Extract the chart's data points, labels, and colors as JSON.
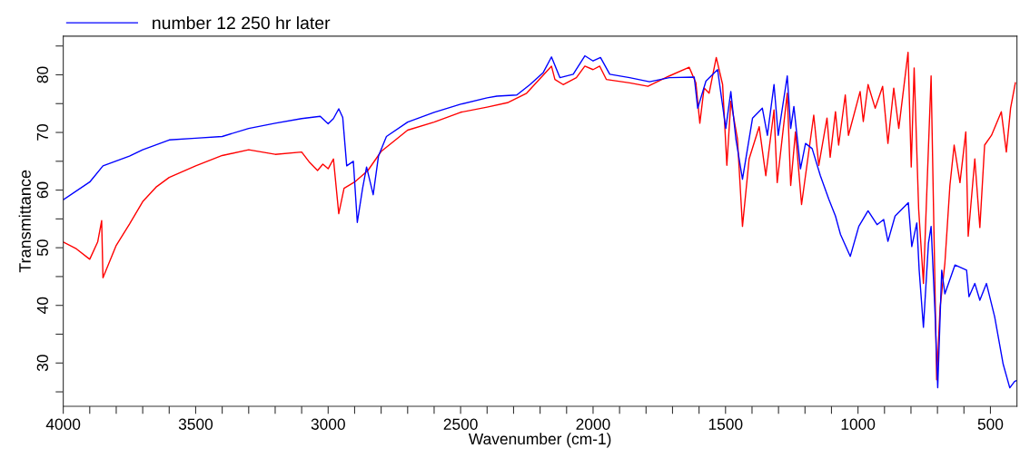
{
  "chart_data": {
    "type": "line",
    "xlabel": "Wavenumber (cm-1)",
    "ylabel": "Transmittance",
    "xlim": [
      4000,
      400
    ],
    "ylim": [
      22.5,
      86.7
    ],
    "xticks": [
      {
        "value": 4000,
        "label": "4000"
      },
      {
        "value": 3900,
        "label": null
      },
      {
        "value": 3800,
        "label": null
      },
      {
        "value": 3700,
        "label": null
      },
      {
        "value": 3600,
        "label": null
      },
      {
        "value": 3500,
        "label": "3500"
      },
      {
        "value": 3400,
        "label": null
      },
      {
        "value": 3300,
        "label": null
      },
      {
        "value": 3200,
        "label": null
      },
      {
        "value": 3100,
        "label": null
      },
      {
        "value": 3000,
        "label": "3000"
      },
      {
        "value": 2900,
        "label": null
      },
      {
        "value": 2800,
        "label": null
      },
      {
        "value": 2700,
        "label": null
      },
      {
        "value": 2600,
        "label": null
      },
      {
        "value": 2500,
        "label": "2500"
      },
      {
        "value": 2400,
        "label": null
      },
      {
        "value": 2300,
        "label": null
      },
      {
        "value": 2200,
        "label": null
      },
      {
        "value": 2100,
        "label": null
      },
      {
        "value": 2000,
        "label": "2000"
      },
      {
        "value": 1900,
        "label": null
      },
      {
        "value": 1800,
        "label": null
      },
      {
        "value": 1700,
        "label": null
      },
      {
        "value": 1600,
        "label": null
      },
      {
        "value": 1500,
        "label": "1500"
      },
      {
        "value": 1400,
        "label": null
      },
      {
        "value": 1300,
        "label": null
      },
      {
        "value": 1200,
        "label": null
      },
      {
        "value": 1100,
        "label": null
      },
      {
        "value": 1000,
        "label": "1000"
      },
      {
        "value": 900,
        "label": null
      },
      {
        "value": 800,
        "label": null
      },
      {
        "value": 700,
        "label": null
      },
      {
        "value": 600,
        "label": null
      },
      {
        "value": 500,
        "label": "500"
      }
    ],
    "yticks": [
      {
        "value": 25,
        "label": null
      },
      30,
      {
        "value": 35,
        "label": null
      },
      40,
      {
        "value": 45,
        "label": null
      },
      50,
      {
        "value": 55,
        "label": null
      },
      60,
      {
        "value": 65,
        "label": null
      },
      70,
      {
        "value": 75,
        "label": null
      },
      80,
      {
        "value": 85,
        "label": null
      }
    ],
    "grid": false,
    "legend": "top left",
    "marker": "none",
    "line_style": "solid",
    "series": [
      {
        "color": "#ff0000",
        "x": [
          4000,
          3950,
          3900,
          3870,
          3855,
          3850,
          3800,
          3750,
          3700,
          3650,
          3600,
          3500,
          3400,
          3300,
          3200,
          3100,
          3070,
          3040,
          3020,
          3000,
          2980,
          2960,
          2940,
          2900,
          2850,
          2800,
          2700,
          2600,
          2500,
          2400,
          2320,
          2251,
          2157,
          2144,
          2113,
          2063,
          2031,
          2000,
          1975,
          1950,
          1862,
          1793,
          1712,
          1637,
          1612,
          1597,
          1581,
          1562,
          1535,
          1511,
          1495,
          1480,
          1455,
          1436,
          1411,
          1373,
          1348,
          1317,
          1305,
          1267,
          1254,
          1236,
          1213,
          1167,
          1148,
          1117,
          1105,
          1085,
          1073,
          1048,
          1036,
          992,
          980,
          962,
          935,
          907,
          887,
          865,
          846,
          811,
          799,
          788,
          771,
          753,
          724,
          703,
          690,
          672,
          653,
          637,
          615,
          593,
          584,
          559,
          540,
          522,
          496,
          459,
          440,
          424,
          406
        ],
        "values": [
          51,
          49.8,
          48,
          51,
          54.7,
          44.8,
          50.4,
          54.1,
          58,
          60.5,
          62.2,
          64.2,
          66,
          67,
          66.2,
          66.6,
          64.8,
          63.4,
          64.5,
          63.7,
          65.4,
          55.9,
          60.3,
          61.4,
          63.4,
          66.7,
          70.4,
          71.8,
          73.5,
          74.4,
          75.2,
          76.8,
          81.5,
          79.2,
          78.3,
          79.5,
          81.5,
          80.9,
          81.5,
          79.2,
          78.6,
          78,
          79.8,
          81.3,
          78.6,
          71.6,
          77.7,
          76.8,
          83,
          78.3,
          64.3,
          75.4,
          68.9,
          53.7,
          65.4,
          71,
          62.5,
          73.9,
          61.3,
          76.8,
          60.8,
          70.1,
          57.5,
          73,
          64.3,
          72.5,
          65.7,
          73.6,
          67.8,
          76.5,
          69.5,
          77.1,
          71.9,
          78.3,
          74.2,
          78,
          68.1,
          77.7,
          70.7,
          83.9,
          64,
          81.2,
          56.7,
          43.8,
          79.8,
          27.1,
          39.7,
          47.3,
          60.8,
          67.8,
          61.3,
          70.1,
          52,
          65.4,
          53.5,
          67.8,
          69.5,
          73.6,
          66.6,
          74.2,
          78.6
        ]
      },
      {
        "name": "number 12 250 hr later",
        "color": "#0000ff",
        "x": [
          4000,
          3900,
          3850,
          3750,
          3700,
          3600,
          3500,
          3400,
          3300,
          3200,
          3100,
          3030,
          3000,
          2980,
          2960,
          2945,
          2930,
          2905,
          2890,
          2870,
          2855,
          2830,
          2810,
          2780,
          2700,
          2600,
          2500,
          2400,
          2363,
          2288,
          2238,
          2188,
          2157,
          2125,
          2075,
          2031,
          2000,
          1972,
          1937,
          1862,
          1787,
          1712,
          1618,
          1605,
          1574,
          1530,
          1499,
          1480,
          1461,
          1436,
          1398,
          1361,
          1342,
          1317,
          1301,
          1267,
          1254,
          1242,
          1217,
          1198,
          1173,
          1142,
          1110,
          1085,
          1066,
          1029,
          997,
          962,
          928,
          903,
          887,
          860,
          810,
          797,
          778,
          769,
          753,
          734,
          724,
          709,
          699,
          684,
          672,
          634,
          590,
          581,
          559,
          540,
          515,
          484,
          452,
          427,
          409,
          400
        ],
        "values": [
          58.3,
          61.4,
          64.2,
          65.9,
          67,
          68.7,
          69,
          69.3,
          70.7,
          71.6,
          72.4,
          72.8,
          71.5,
          72.4,
          74.1,
          72.6,
          64.2,
          65,
          54.4,
          60.3,
          64,
          59.2,
          65.9,
          69.3,
          71.8,
          73.5,
          74.9,
          76,
          76.3,
          76.5,
          78.3,
          80.4,
          83.1,
          79.5,
          80.1,
          83.3,
          82.4,
          83,
          80.1,
          79.5,
          78.8,
          79.5,
          79.6,
          74.2,
          78.9,
          80.9,
          70.7,
          77.1,
          68.9,
          61.9,
          72.5,
          74.2,
          69.5,
          78.3,
          69.5,
          79.8,
          70.7,
          74.5,
          63.7,
          68.1,
          67.2,
          62.5,
          58.4,
          55.5,
          52.3,
          48.5,
          53.7,
          56.4,
          54,
          54.9,
          51.1,
          55.5,
          57.8,
          50.2,
          54.3,
          46.1,
          36.2,
          50.8,
          53.7,
          38.5,
          25.7,
          46.1,
          42,
          47,
          46.1,
          41.5,
          43.8,
          40.9,
          43.8,
          38,
          29.8,
          25.7,
          26.8,
          27
        ]
      }
    ]
  }
}
